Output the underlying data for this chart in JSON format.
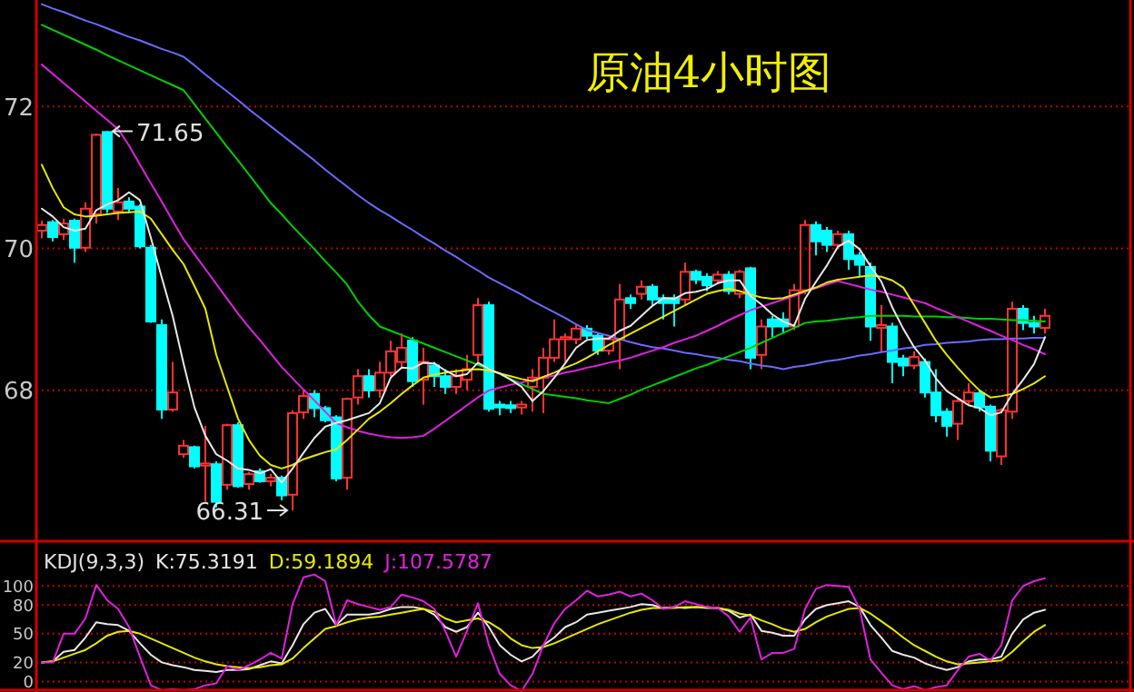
{
  "chart_data": [
    {
      "type": "candlestick",
      "title": "原油4小时图",
      "categories": [
        null,
        null,
        null,
        null,
        null,
        null,
        null,
        null,
        null,
        null,
        null,
        null,
        null,
        null,
        null,
        null,
        null,
        null,
        null,
        null,
        null,
        null,
        null,
        null,
        null,
        null,
        null,
        null,
        null,
        null,
        null,
        null,
        null,
        null,
        null,
        null,
        null,
        null,
        null,
        null,
        null,
        null,
        null,
        null,
        null,
        null,
        null,
        null,
        null,
        null,
        null,
        null,
        null,
        null,
        null,
        null,
        null,
        null,
        null,
        null,
        null,
        null,
        null,
        null,
        null,
        null,
        null,
        null,
        null,
        null,
        null,
        null,
        null,
        null,
        null,
        null,
        null,
        null,
        null,
        null,
        null,
        null,
        null,
        null,
        null,
        null,
        null,
        null,
        null,
        null,
        null,
        null,
        null
      ],
      "ohlc": [
        [
          70.25,
          70.39,
          70.14,
          70.33
        ],
        [
          70.37,
          70.4,
          70.1,
          70.16
        ],
        [
          70.2,
          70.42,
          70.12,
          70.35
        ],
        [
          70.39,
          70.42,
          69.8,
          70.01
        ],
        [
          70.01,
          70.65,
          69.95,
          70.56
        ],
        [
          70.48,
          71.62,
          70.35,
          71.6
        ],
        [
          71.64,
          71.65,
          70.5,
          70.56
        ],
        [
          70.52,
          70.85,
          70.4,
          70.65
        ],
        [
          70.66,
          70.72,
          70.5,
          70.56
        ],
        [
          70.59,
          70.62,
          70.0,
          70.03
        ],
        [
          70.01,
          70.05,
          68.95,
          68.97
        ],
        [
          68.92,
          69.0,
          67.6,
          67.73
        ],
        [
          67.73,
          68.4,
          67.7,
          67.97
        ],
        [
          67.1,
          67.3,
          67.05,
          67.22
        ],
        [
          67.2,
          67.22,
          66.9,
          66.93
        ],
        [
          66.94,
          67.5,
          66.43,
          66.97
        ],
        [
          66.96,
          67.0,
          66.35,
          66.43
        ],
        [
          66.67,
          67.53,
          66.6,
          67.51
        ],
        [
          67.51,
          67.55,
          66.63,
          66.65
        ],
        [
          66.68,
          66.85,
          66.6,
          66.82
        ],
        [
          66.86,
          66.9,
          66.7,
          66.72
        ],
        [
          66.72,
          66.82,
          66.65,
          66.77
        ],
        [
          66.77,
          66.8,
          66.45,
          66.52
        ],
        [
          66.53,
          67.72,
          66.31,
          67.68
        ],
        [
          67.69,
          68.0,
          67.6,
          67.92
        ],
        [
          67.95,
          68.0,
          67.62,
          67.75
        ],
        [
          67.75,
          67.78,
          67.55,
          67.58
        ],
        [
          67.62,
          67.65,
          66.72,
          66.76
        ],
        [
          66.77,
          67.9,
          66.6,
          67.88
        ],
        [
          67.9,
          68.3,
          67.8,
          68.2
        ],
        [
          68.2,
          68.3,
          67.9,
          68.0
        ],
        [
          68.0,
          68.4,
          67.9,
          68.25
        ],
        [
          68.25,
          68.7,
          68.2,
          68.55
        ],
        [
          68.4,
          68.8,
          68.3,
          68.6
        ],
        [
          68.7,
          68.75,
          68.05,
          68.13
        ],
        [
          68.15,
          68.6,
          67.8,
          68.4
        ],
        [
          68.35,
          68.4,
          68.05,
          68.2
        ],
        [
          68.2,
          68.3,
          67.95,
          68.05
        ],
        [
          68.05,
          68.3,
          67.95,
          68.2
        ],
        [
          68.15,
          68.5,
          68.0,
          68.3
        ],
        [
          68.5,
          69.3,
          68.4,
          69.2
        ],
        [
          69.2,
          69.25,
          67.7,
          67.74
        ],
        [
          67.8,
          67.85,
          67.65,
          67.76
        ],
        [
          67.79,
          67.85,
          67.68,
          67.75
        ],
        [
          67.76,
          67.85,
          67.66,
          67.8
        ],
        [
          68.05,
          68.3,
          67.7,
          68.18
        ],
        [
          68.18,
          68.6,
          67.68,
          68.46
        ],
        [
          68.46,
          69.0,
          68.4,
          68.72
        ],
        [
          68.72,
          68.8,
          68.4,
          68.75
        ],
        [
          68.72,
          68.92,
          68.65,
          68.87
        ],
        [
          68.87,
          68.92,
          68.72,
          68.77
        ],
        [
          68.77,
          68.8,
          68.5,
          68.56
        ],
        [
          68.56,
          68.75,
          68.5,
          68.72
        ],
        [
          68.72,
          69.5,
          68.3,
          69.28
        ],
        [
          69.3,
          69.35,
          69.15,
          69.23
        ],
        [
          69.36,
          69.55,
          69.28,
          69.46
        ],
        [
          69.46,
          69.5,
          69.2,
          69.28
        ],
        [
          69.3,
          69.35,
          69.0,
          69.23
        ],
        [
          69.3,
          69.35,
          68.9,
          69.23
        ],
        [
          69.28,
          69.8,
          69.2,
          69.67
        ],
        [
          69.67,
          69.7,
          69.5,
          69.56
        ],
        [
          69.6,
          69.65,
          69.4,
          69.48
        ],
        [
          69.55,
          69.68,
          69.5,
          69.63
        ],
        [
          69.63,
          69.68,
          69.35,
          69.4
        ],
        [
          69.36,
          69.7,
          69.3,
          69.67
        ],
        [
          69.72,
          69.74,
          68.3,
          68.46
        ],
        [
          68.5,
          69.0,
          68.3,
          68.9
        ],
        [
          69.0,
          69.05,
          68.75,
          68.9
        ],
        [
          69.0,
          69.1,
          68.8,
          68.9
        ],
        [
          68.9,
          69.5,
          68.85,
          69.41
        ],
        [
          69.41,
          70.4,
          69.35,
          70.33
        ],
        [
          70.33,
          70.38,
          69.9,
          70.1
        ],
        [
          70.25,
          70.3,
          69.95,
          70.05
        ],
        [
          70.05,
          70.25,
          70.0,
          70.2
        ],
        [
          70.2,
          70.25,
          69.7,
          69.85
        ],
        [
          69.9,
          69.95,
          69.6,
          69.77
        ],
        [
          69.74,
          69.8,
          68.7,
          68.9
        ],
        [
          68.88,
          69.2,
          68.55,
          68.92
        ],
        [
          68.9,
          68.95,
          68.1,
          68.4
        ],
        [
          68.45,
          68.5,
          68.2,
          68.35
        ],
        [
          68.35,
          68.55,
          68.3,
          68.47
        ],
        [
          68.4,
          68.45,
          67.9,
          67.97
        ],
        [
          67.97,
          68.3,
          67.55,
          67.65
        ],
        [
          67.7,
          67.75,
          67.35,
          67.5
        ],
        [
          67.53,
          67.9,
          67.3,
          67.85
        ],
        [
          67.85,
          68.1,
          67.8,
          67.97
        ],
        [
          67.96,
          68.0,
          67.7,
          67.76
        ],
        [
          67.77,
          67.8,
          67.0,
          67.15
        ],
        [
          67.07,
          67.75,
          66.95,
          67.72
        ],
        [
          67.7,
          69.25,
          67.6,
          69.15
        ],
        [
          69.15,
          69.2,
          68.85,
          68.95
        ],
        [
          68.95,
          69.05,
          68.8,
          68.9
        ],
        [
          68.88,
          69.15,
          68.8,
          69.05
        ]
      ],
      "colors": [
        "#ff3232",
        "#00ffff",
        "#ff3232",
        "#00ffff",
        "#ff3232",
        "#ff3232",
        "#00ffff",
        "#ff3232",
        "#00ffff",
        "#00ffff",
        "#00ffff",
        "#00ffff",
        "#ff3232",
        "#ff3232",
        "#00ffff",
        "#ff3232",
        "#00ffff",
        "#ff3232",
        "#00ffff",
        "#ff3232",
        "#00ffff",
        "#ff3232",
        "#00ffff",
        "#ff3232",
        "#ff3232",
        "#00ffff",
        "#00ffff",
        "#00ffff",
        "#ff3232",
        "#ff3232",
        "#00ffff",
        "#ff3232",
        "#ff3232",
        "#ff3232",
        "#00ffff",
        "#ff3232",
        "#00ffff",
        "#00ffff",
        "#ff3232",
        "#ff3232",
        "#ff3232",
        "#00ffff",
        "#00ffff",
        "#00ffff",
        "#ff3232",
        "#ff3232",
        "#ff3232",
        "#ff3232",
        "#ff3232",
        "#ff3232",
        "#00ffff",
        "#00ffff",
        "#ff3232",
        "#ff3232",
        "#00ffff",
        "#ff3232",
        "#00ffff",
        "#00ffff",
        "#00ffff",
        "#ff3232",
        "#00ffff",
        "#00ffff",
        "#ff3232",
        "#00ffff",
        "#ff3232",
        "#00ffff",
        "#ff3232",
        "#00ffff",
        "#00ffff",
        "#ff3232",
        "#ff3232",
        "#00ffff",
        "#00ffff",
        "#ff3232",
        "#00ffff",
        "#00ffff",
        "#00ffff",
        "#ff3232",
        "#00ffff",
        "#00ffff",
        "#ff3232",
        "#00ffff",
        "#00ffff",
        "#00ffff",
        "#ff3232",
        "#ff3232",
        "#00ffff",
        "#00ffff",
        "#ff3232",
        "#ff3232",
        "#00ffff",
        "#00ffff",
        "#ff3232"
      ],
      "series": [
        {
          "type": "line",
          "color": "#6a6aff",
          "values": [
            73.44,
            73.38,
            73.33,
            73.27,
            73.21,
            73.16,
            73.1,
            73.04,
            72.98,
            72.93,
            72.87,
            72.81,
            72.76,
            72.7,
            72.58,
            72.45,
            72.33,
            72.21,
            72.09,
            71.96,
            71.84,
            71.72,
            71.6,
            71.48,
            71.36,
            71.24,
            71.11,
            70.99,
            70.87,
            70.75,
            70.64,
            70.54,
            70.45,
            70.35,
            70.26,
            70.16,
            70.07,
            69.97,
            69.88,
            69.78,
            69.69,
            69.59,
            69.51,
            69.43,
            69.35,
            69.26,
            69.18,
            69.1,
            69.02,
            68.93,
            68.85,
            68.81,
            68.77,
            68.72,
            68.68,
            68.64,
            68.61,
            68.59,
            68.56,
            68.53,
            68.51,
            68.48,
            68.46,
            68.43,
            68.41,
            68.38,
            68.35,
            68.33,
            68.3,
            68.33,
            68.35,
            68.38,
            68.41,
            68.43,
            68.46,
            68.49,
            68.51,
            68.54,
            68.56,
            68.59,
            68.61,
            68.64,
            68.65,
            68.67,
            68.68,
            68.69,
            68.71,
            68.72,
            68.72,
            68.73,
            68.73,
            68.74,
            68.74
          ]
        },
        {
          "type": "line",
          "color": "#00d000",
          "values": [
            73.15,
            73.08,
            73.01,
            72.94,
            72.87,
            72.8,
            72.72,
            72.65,
            72.58,
            72.51,
            72.44,
            72.37,
            72.3,
            72.23,
            72.03,
            71.83,
            71.63,
            71.43,
            71.24,
            71.04,
            70.84,
            70.64,
            70.48,
            70.31,
            70.15,
            69.99,
            69.82,
            69.66,
            69.49,
            69.25,
            69.06,
            68.9,
            68.84,
            68.78,
            68.72,
            68.66,
            68.6,
            68.54,
            68.48,
            68.42,
            68.36,
            68.3,
            68.23,
            68.16,
            68.09,
            68.02,
            67.95,
            67.93,
            67.91,
            67.89,
            67.86,
            67.84,
            67.82,
            67.88,
            67.94,
            68.01,
            68.07,
            68.13,
            68.19,
            68.25,
            68.31,
            68.36,
            68.42,
            68.48,
            68.54,
            68.6,
            68.67,
            68.74,
            68.81,
            68.88,
            68.95,
            68.97,
            68.98,
            69.0,
            69.02,
            69.03,
            69.05,
            69.05,
            69.05,
            69.05,
            69.04,
            69.04,
            69.04,
            69.03,
            69.03,
            69.02,
            69.01,
            69.01,
            69.0,
            68.99,
            68.99,
            68.98,
            68.97
          ]
        },
        {
          "type": "line",
          "color": "#e020e0",
          "values": [
            72.59,
            72.46,
            72.33,
            72.2,
            72.07,
            71.94,
            71.81,
            71.68,
            71.45,
            71.18,
            70.92,
            70.66,
            70.39,
            70.13,
            69.92,
            69.71,
            69.5,
            69.29,
            69.08,
            68.89,
            68.71,
            68.52,
            68.33,
            68.17,
            68.01,
            67.86,
            67.7,
            67.54,
            67.48,
            67.43,
            67.39,
            67.36,
            67.34,
            67.33,
            67.34,
            67.36,
            67.46,
            67.57,
            67.68,
            67.79,
            67.9,
            68.0,
            68.04,
            68.08,
            68.11,
            68.15,
            68.18,
            68.21,
            68.25,
            68.28,
            68.32,
            68.35,
            68.39,
            68.42,
            68.46,
            68.51,
            68.56,
            68.61,
            68.67,
            68.72,
            68.77,
            68.84,
            68.91,
            68.99,
            69.06,
            69.13,
            69.18,
            69.23,
            69.28,
            69.33,
            69.39,
            69.44,
            69.49,
            69.54,
            69.5,
            69.46,
            69.42,
            69.39,
            69.35,
            69.31,
            69.27,
            69.23,
            69.16,
            69.1,
            69.03,
            68.97,
            68.9,
            68.84,
            68.77,
            68.71,
            68.64,
            68.58,
            68.51
          ]
        },
        {
          "type": "line",
          "color": "#e8e800",
          "values": [
            71.18,
            70.85,
            70.58,
            70.48,
            70.45,
            70.46,
            70.48,
            70.5,
            70.51,
            70.52,
            70.42,
            70.2,
            69.98,
            69.78,
            69.47,
            69.15,
            68.5,
            68.05,
            67.6,
            67.3,
            67.08,
            66.95,
            66.9,
            66.95,
            67.03,
            67.08,
            67.13,
            67.17,
            67.3,
            67.45,
            67.6,
            67.7,
            67.82,
            67.95,
            68.07,
            68.18,
            68.22,
            68.25,
            68.27,
            68.29,
            68.3,
            68.28,
            68.24,
            68.2,
            68.16,
            68.13,
            68.19,
            68.25,
            68.32,
            68.38,
            68.46,
            68.55,
            68.64,
            68.72,
            68.8,
            68.88,
            68.96,
            69.04,
            69.12,
            69.2,
            69.28,
            69.36,
            69.4,
            69.43,
            69.4,
            69.35,
            69.31,
            69.29,
            69.3,
            69.35,
            69.4,
            69.45,
            69.52,
            69.56,
            69.58,
            69.6,
            69.62,
            69.6,
            69.55,
            69.45,
            69.2,
            68.95,
            68.7,
            68.5,
            68.32,
            68.15,
            68.0,
            67.9,
            67.92,
            67.95,
            68.02,
            68.1,
            68.2
          ]
        },
        {
          "type": "line",
          "color": "#e8e8e8",
          "values": [
            70.56,
            70.45,
            70.3,
            70.25,
            70.28,
            70.54,
            70.62,
            70.68,
            70.79,
            70.68,
            70.15,
            69.59,
            69.05,
            68.38,
            67.76,
            67.36,
            67.1,
            67.01,
            66.9,
            66.88,
            66.83,
            66.89,
            66.7,
            66.9,
            67.12,
            67.33,
            67.49,
            67.54,
            67.58,
            67.63,
            67.68,
            67.82,
            68.18,
            68.32,
            68.31,
            68.39,
            68.38,
            68.28,
            68.2,
            68.23,
            68.39,
            68.3,
            68.24,
            68.15,
            68.05,
            67.85,
            67.99,
            68.18,
            68.38,
            68.6,
            68.71,
            68.73,
            68.73,
            68.84,
            68.91,
            69.05,
            69.19,
            69.3,
            69.29,
            69.37,
            69.39,
            69.43,
            69.51,
            69.55,
            69.55,
            69.33,
            69.21,
            69.07,
            68.97,
            68.91,
            69.29,
            69.53,
            69.76,
            70.02,
            70.11,
            69.99,
            69.75,
            69.53,
            69.17,
            68.87,
            68.61,
            68.42,
            68.17,
            67.99,
            67.89,
            67.79,
            67.75,
            67.65,
            67.69,
            67.95,
            68.15,
            68.37,
            68.75
          ]
        }
      ],
      "ylim": [
        65.9,
        73.5
      ],
      "yticks": [
        68,
        70,
        72
      ],
      "grid": "y",
      "annotations": [
        "71.65",
        "66.31"
      ]
    },
    {
      "type": "line",
      "title": "KDJ(9,3,3)",
      "legend": "top left",
      "categories": [
        null,
        null,
        null,
        null,
        null,
        null,
        null,
        null,
        null,
        null,
        null,
        null,
        null,
        null,
        null,
        null,
        null,
        null,
        null,
        null,
        null,
        null,
        null,
        null,
        null,
        null,
        null,
        null,
        null,
        null,
        null,
        null,
        null,
        null,
        null,
        null,
        null,
        null,
        null,
        null,
        null,
        null,
        null,
        null,
        null,
        null,
        null,
        null,
        null,
        null,
        null,
        null,
        null,
        null,
        null,
        null,
        null,
        null,
        null,
        null,
        null,
        null,
        null,
        null,
        null,
        null,
        null,
        null,
        null,
        null,
        null,
        null,
        null,
        null,
        null,
        null,
        null,
        null,
        null,
        null,
        null,
        null,
        null,
        null,
        null,
        null,
        null,
        null,
        null,
        null,
        null,
        null,
        null
      ],
      "series": [
        {
          "name": "K:75.3191",
          "color": "#e8e8e8",
          "values": [
            20,
            21,
            31,
            33,
            46,
            62,
            60,
            59,
            53,
            40,
            28,
            20,
            17,
            15,
            12,
            11,
            10,
            12,
            12,
            13,
            17,
            21,
            19,
            38,
            60,
            72,
            76,
            59,
            70,
            70,
            70,
            72,
            76,
            78,
            78,
            76,
            70,
            57,
            52,
            57,
            72,
            57,
            38,
            28,
            21,
            26,
            38,
            46,
            57,
            62,
            70,
            72,
            74,
            76,
            78,
            81,
            80,
            77,
            78,
            77,
            78,
            77,
            77,
            74,
            67,
            70,
            53,
            51,
            48,
            48,
            65,
            76,
            80,
            82,
            84,
            78,
            59,
            46,
            32,
            28,
            25,
            19,
            15,
            12,
            15,
            21,
            23,
            23,
            26,
            50,
            65,
            72,
            75
          ]
        },
        {
          "name": "D:59.1894",
          "color": "#e8e800",
          "values": [
            20,
            21,
            25,
            29,
            33,
            40,
            48,
            52,
            53,
            50,
            45,
            40,
            35,
            30,
            25,
            21,
            18,
            16,
            15,
            14,
            15,
            17,
            18,
            24,
            35,
            45,
            55,
            58,
            62,
            65,
            67,
            68,
            70,
            72,
            74,
            76,
            73,
            66,
            62,
            64,
            66,
            62,
            55,
            45,
            38,
            35,
            36,
            40,
            45,
            50,
            55,
            60,
            64,
            68,
            72,
            75,
            77,
            77,
            77,
            78,
            78,
            78,
            77,
            75,
            71,
            69,
            64,
            60,
            55,
            52,
            55,
            62,
            68,
            72,
            76,
            77,
            71,
            63,
            55,
            46,
            38,
            32,
            26,
            21,
            18,
            19,
            20,
            21,
            22,
            31,
            42,
            52,
            59
          ]
        },
        {
          "name": "J:107.5787",
          "color": "#e020e0",
          "values": [
            20,
            20,
            50,
            50,
            66,
            101,
            85,
            76,
            57,
            26,
            -4,
            -9,
            -8,
            -9,
            -8,
            -4,
            -2,
            16,
            12,
            17,
            23,
            30,
            24,
            81,
            109,
            112,
            105,
            59,
            85,
            81,
            78,
            75,
            78,
            91,
            88,
            84,
            76,
            53,
            26,
            53,
            82,
            38,
            8,
            -4,
            -10,
            8,
            38,
            61,
            76,
            85,
            95,
            89,
            91,
            94,
            89,
            92,
            85,
            76,
            78,
            84,
            81,
            78,
            77,
            68,
            52,
            67,
            23,
            30,
            30,
            34,
            76,
            97,
            101,
            100,
            99,
            76,
            23,
            9,
            -4,
            -8,
            -5,
            -9,
            -6,
            -4,
            12,
            26,
            29,
            22,
            38,
            85,
            100,
            105,
            108
          ]
        }
      ],
      "ylim": [
        -11,
        143
      ],
      "yticks": [
        100,
        80,
        50,
        20,
        0
      ],
      "grid": "y"
    }
  ]
}
